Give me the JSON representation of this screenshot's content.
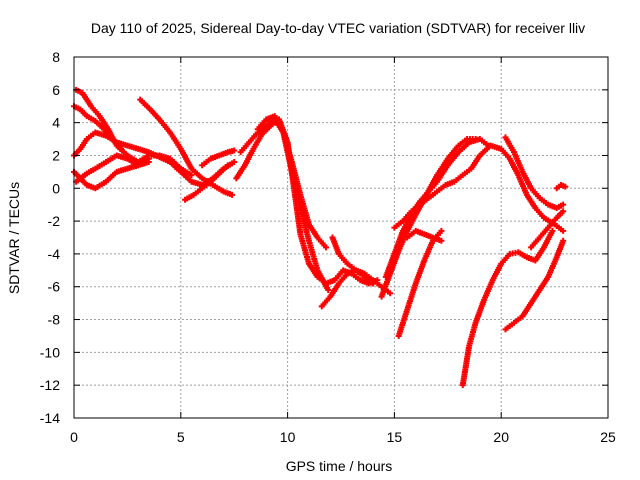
{
  "chart_data": {
    "type": "scatter",
    "title": "Day 110 of 2025, Sidereal Day-to-day VTEC variation (SDTVAR) for receiver lliv",
    "xlabel": "GPS time / hours",
    "ylabel": "SDTVAR / TECUs",
    "xlim": [
      0,
      25
    ],
    "ylim": [
      -14,
      8
    ],
    "xticks": [
      0,
      5,
      10,
      15,
      20,
      25
    ],
    "yticks": [
      -14,
      -12,
      -10,
      -8,
      -6,
      -4,
      -2,
      0,
      2,
      4,
      6,
      8
    ],
    "grid": true,
    "marker": "+",
    "color": "#ff0000",
    "series": [
      {
        "name": "arc-1",
        "x": [
          0.0,
          0.3,
          0.6,
          1.0,
          1.5,
          2.0,
          2.5,
          3.0,
          3.5,
          4.0,
          4.5,
          5.0,
          5.5,
          6.0,
          6.5,
          7.0,
          7.5
        ],
        "y": [
          2.0,
          2.4,
          3.0,
          3.4,
          3.2,
          2.8,
          2.6,
          2.4,
          2.2,
          1.9,
          1.6,
          1.0,
          0.4,
          0.2,
          0.6,
          1.2,
          1.6
        ]
      },
      {
        "name": "arc-2",
        "x": [
          0.1,
          0.4,
          0.8,
          1.2,
          1.6,
          2.0,
          2.5,
          3.0,
          3.5,
          4.0,
          4.5,
          5.0,
          5.5
        ],
        "y": [
          6.0,
          5.8,
          5.0,
          4.4,
          3.6,
          2.6,
          2.0,
          1.6,
          2.0,
          2.0,
          1.8,
          1.2,
          0.8
        ]
      },
      {
        "name": "arc-3",
        "x": [
          0.0,
          0.3,
          0.6,
          1.0,
          1.5,
          2.0,
          2.5,
          3.0,
          3.5
        ],
        "y": [
          1.0,
          0.6,
          0.2,
          0.0,
          0.4,
          1.0,
          1.2,
          1.4,
          1.8
        ]
      },
      {
        "name": "arc-4",
        "x": [
          0.1,
          0.6,
          1.0,
          1.5,
          2.0,
          2.5,
          3.0,
          3.5
        ],
        "y": [
          0.4,
          0.9,
          1.2,
          1.6,
          2.0,
          1.8,
          1.4,
          1.6
        ]
      },
      {
        "name": "arc-5",
        "x": [
          0.0,
          0.3,
          0.6,
          1.0,
          1.4,
          1.8,
          2.2
        ],
        "y": [
          5.0,
          4.8,
          4.4,
          4.1,
          3.6,
          3.0,
          2.4
        ]
      },
      {
        "name": "arc-6",
        "x": [
          3.1,
          3.5,
          4.0,
          4.5,
          5.0,
          5.5,
          6.0,
          6.5,
          7.0,
          7.4
        ],
        "y": [
          5.4,
          4.9,
          4.2,
          3.4,
          2.4,
          1.2,
          0.6,
          0.2,
          -0.2,
          -0.4
        ]
      },
      {
        "name": "arc-7",
        "x": [
          5.2,
          5.6,
          6.0,
          6.4,
          6.8,
          7.2
        ],
        "y": [
          -0.7,
          -0.4,
          0.0,
          0.4,
          0.9,
          1.4
        ]
      },
      {
        "name": "arc-8",
        "x": [
          6.0,
          6.4,
          6.8,
          7.2,
          7.5
        ],
        "y": [
          1.4,
          1.8,
          2.0,
          2.2,
          2.3
        ]
      },
      {
        "name": "arc-9",
        "x": [
          7.6,
          8.0,
          8.4,
          8.8,
          9.2,
          9.6,
          10.0,
          10.3,
          10.6,
          11.0,
          11.4,
          11.8,
          12.2,
          12.6,
          13.0,
          13.4,
          13.8,
          14.2
        ],
        "y": [
          0.6,
          1.4,
          2.4,
          3.3,
          3.8,
          4.2,
          2.8,
          0.0,
          -2.8,
          -4.6,
          -5.4,
          -5.8,
          -5.6,
          -5.0,
          -5.2,
          -5.6,
          -5.8,
          -5.6
        ]
      },
      {
        "name": "arc-10",
        "x": [
          7.8,
          8.2,
          8.6,
          9.0,
          9.4,
          9.8,
          10.2,
          10.6,
          11.0,
          11.4,
          11.9
        ],
        "y": [
          2.2,
          2.8,
          3.4,
          3.8,
          4.2,
          3.4,
          1.0,
          -1.2,
          -3.2,
          -5.0,
          -6.2
        ]
      },
      {
        "name": "arc-11",
        "x": [
          8.6,
          9.0,
          9.4,
          9.8,
          10.2,
          10.6,
          11.0,
          11.4,
          11.8
        ],
        "y": [
          3.6,
          4.2,
          4.4,
          3.4,
          1.6,
          -0.4,
          -2.2,
          -3.0,
          -3.6
        ]
      },
      {
        "name": "arc-12",
        "x": [
          11.6,
          12.0,
          12.4,
          12.8,
          13.2,
          13.6,
          14.0,
          14.4,
          14.8
        ],
        "y": [
          -7.2,
          -6.6,
          -5.8,
          -5.2,
          -5.0,
          -5.2,
          -5.6,
          -6.0,
          -6.4
        ]
      },
      {
        "name": "arc-13",
        "x": [
          12.1,
          12.4,
          12.8,
          13.2,
          13.6,
          14.0
        ],
        "y": [
          -3.0,
          -4.0,
          -4.6,
          -5.0,
          -5.4,
          -5.8
        ]
      },
      {
        "name": "arc-14",
        "x": [
          14.4,
          14.8,
          15.2,
          15.6,
          16.0,
          16.5,
          17.0,
          17.5,
          18.0,
          18.4,
          18.8
        ],
        "y": [
          -6.6,
          -5.2,
          -3.8,
          -2.6,
          -1.6,
          -0.4,
          0.8,
          1.8,
          2.6,
          3.0,
          3.0
        ]
      },
      {
        "name": "arc-15",
        "x": [
          14.6,
          15.0,
          15.4,
          15.8,
          16.2,
          16.6,
          17.0,
          17.5,
          18.0,
          18.5,
          19.0,
          19.4
        ],
        "y": [
          -5.4,
          -4.0,
          -2.6,
          -1.6,
          -0.8,
          -0.2,
          0.4,
          1.4,
          2.2,
          2.8,
          3.0,
          2.6
        ]
      },
      {
        "name": "arc-16",
        "x": [
          15.0,
          15.4,
          15.8,
          16.2,
          16.6,
          17.0,
          17.4,
          17.8,
          18.2,
          18.6,
          19.0,
          19.5,
          20.0,
          20.4,
          20.8,
          21.2,
          21.6,
          22.0,
          22.5,
          22.9
        ],
        "y": [
          -2.4,
          -2.0,
          -1.4,
          -1.0,
          -0.6,
          -0.2,
          0.2,
          0.4,
          0.8,
          1.2,
          2.0,
          2.6,
          2.4,
          1.8,
          0.8,
          -0.4,
          -1.2,
          -1.8,
          -2.2,
          -2.6
        ]
      },
      {
        "name": "arc-17",
        "x": [
          15.2,
          15.6,
          16.0,
          16.4,
          16.8,
          17.2
        ],
        "y": [
          -9.0,
          -7.4,
          -5.8,
          -4.4,
          -3.2,
          -2.6
        ]
      },
      {
        "name": "arc-18",
        "x": [
          15.6,
          16.0,
          16.4,
          16.8,
          17.2
        ],
        "y": [
          -3.0,
          -2.6,
          -2.8,
          -3.0,
          -3.2
        ]
      },
      {
        "name": "arc-19",
        "x": [
          18.2,
          18.5,
          18.8,
          19.2,
          19.6,
          20.0,
          20.4,
          20.8,
          21.2,
          21.6,
          22.0,
          22.4
        ],
        "y": [
          -12.0,
          -9.6,
          -8.2,
          -6.8,
          -5.6,
          -4.6,
          -4.0,
          -3.9,
          -4.2,
          -4.4,
          -3.6,
          -2.6
        ]
      },
      {
        "name": "arc-20",
        "x": [
          20.2,
          20.6,
          21.0,
          21.4,
          21.8,
          22.2,
          22.6,
          22.9
        ],
        "y": [
          -8.6,
          -8.2,
          -7.8,
          -7.0,
          -6.2,
          -5.4,
          -4.2,
          -3.2
        ]
      },
      {
        "name": "arc-21",
        "x": [
          20.2,
          20.6,
          21.0,
          21.4,
          21.8,
          22.2,
          22.6,
          22.9
        ],
        "y": [
          3.1,
          2.2,
          1.0,
          0.0,
          -0.6,
          -1.0,
          -1.2,
          -1.0
        ]
      },
      {
        "name": "arc-22",
        "x": [
          21.4,
          21.8,
          22.2,
          22.6,
          22.9
        ],
        "y": [
          -3.6,
          -3.0,
          -2.4,
          -1.8,
          -1.4
        ]
      },
      {
        "name": "arc-23",
        "x": [
          22.6,
          22.8,
          23.0
        ],
        "y": [
          0.0,
          0.2,
          0.1
        ]
      }
    ]
  }
}
